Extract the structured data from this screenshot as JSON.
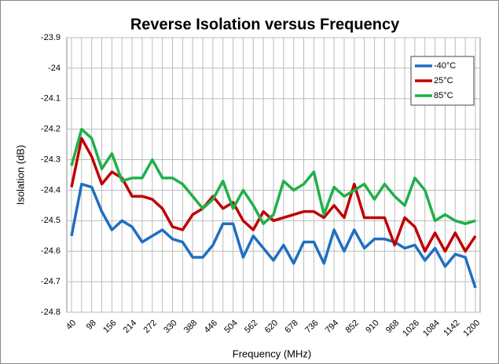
{
  "chart_data": {
    "type": "line",
    "title": "Reverse Isolation versus Frequency",
    "x_label": "Frequency (MHz)",
    "y_label": "Isolation (dB)",
    "categories": [
      "40",
      null,
      "98",
      null,
      "156",
      null,
      "214",
      null,
      "272",
      null,
      "330",
      null,
      "388",
      null,
      "446",
      null,
      "504",
      null,
      "562",
      null,
      "620",
      null,
      "678",
      null,
      "736",
      null,
      "794",
      null,
      "852",
      null,
      "910",
      null,
      "968",
      null,
      "1026",
      null,
      "1084",
      null,
      "1142",
      null,
      "1200"
    ],
    "ylim": [
      -24.8,
      -23.9
    ],
    "yticks": [
      -24.8,
      -24.7,
      -24.6,
      -24.5,
      -24.4,
      -24.3,
      -24.2,
      -24.1,
      -24,
      -23.9
    ],
    "grid": true,
    "legend": "upper right",
    "series": [
      {
        "name": "-40°C",
        "color": "#1f6fc0",
        "values": [
          -24.55,
          -24.38,
          -24.39,
          -24.47,
          -24.53,
          -24.5,
          -24.52,
          -24.57,
          -24.55,
          -24.53,
          -24.56,
          -24.57,
          -24.62,
          -24.62,
          -24.58,
          -24.51,
          -24.51,
          -24.62,
          -24.55,
          -24.59,
          -24.63,
          -24.58,
          -24.64,
          -24.57,
          -24.57,
          -24.64,
          -24.53,
          -24.6,
          -24.53,
          -24.59,
          -24.56,
          -24.56,
          -24.57,
          -24.59,
          -24.58,
          -24.63,
          -24.59,
          -24.65,
          -24.61,
          -24.62,
          -24.72
        ]
      },
      {
        "name": "25°C",
        "color": "#c00000",
        "values": [
          -24.39,
          -24.23,
          -24.29,
          -24.38,
          -24.34,
          -24.36,
          -24.42,
          -24.42,
          -24.43,
          -24.46,
          -24.52,
          -24.53,
          -24.48,
          -24.46,
          -24.42,
          -24.46,
          -24.44,
          -24.5,
          -24.53,
          -24.47,
          -24.5,
          -24.49,
          -24.48,
          -24.47,
          -24.47,
          -24.49,
          -24.45,
          -24.49,
          -24.38,
          -24.49,
          -24.49,
          -24.49,
          -24.58,
          -24.49,
          -24.52,
          -24.6,
          -24.54,
          -24.6,
          -24.54,
          -24.6,
          -24.55
        ]
      },
      {
        "name": "85°C",
        "color": "#1fb04a",
        "values": [
          -24.32,
          -24.2,
          -24.23,
          -24.33,
          -24.28,
          -24.37,
          -24.36,
          -24.36,
          -24.3,
          -24.36,
          -24.36,
          -24.38,
          -24.42,
          -24.46,
          -24.43,
          -24.37,
          -24.46,
          -24.4,
          -24.45,
          -24.51,
          -24.48,
          -24.37,
          -24.4,
          -24.38,
          -24.34,
          -24.48,
          -24.39,
          -24.42,
          -24.4,
          -24.38,
          -24.43,
          -24.38,
          -24.42,
          -24.45,
          -24.36,
          -24.4,
          -24.5,
          -24.48,
          -24.5,
          -24.51,
          -24.5
        ]
      }
    ]
  }
}
